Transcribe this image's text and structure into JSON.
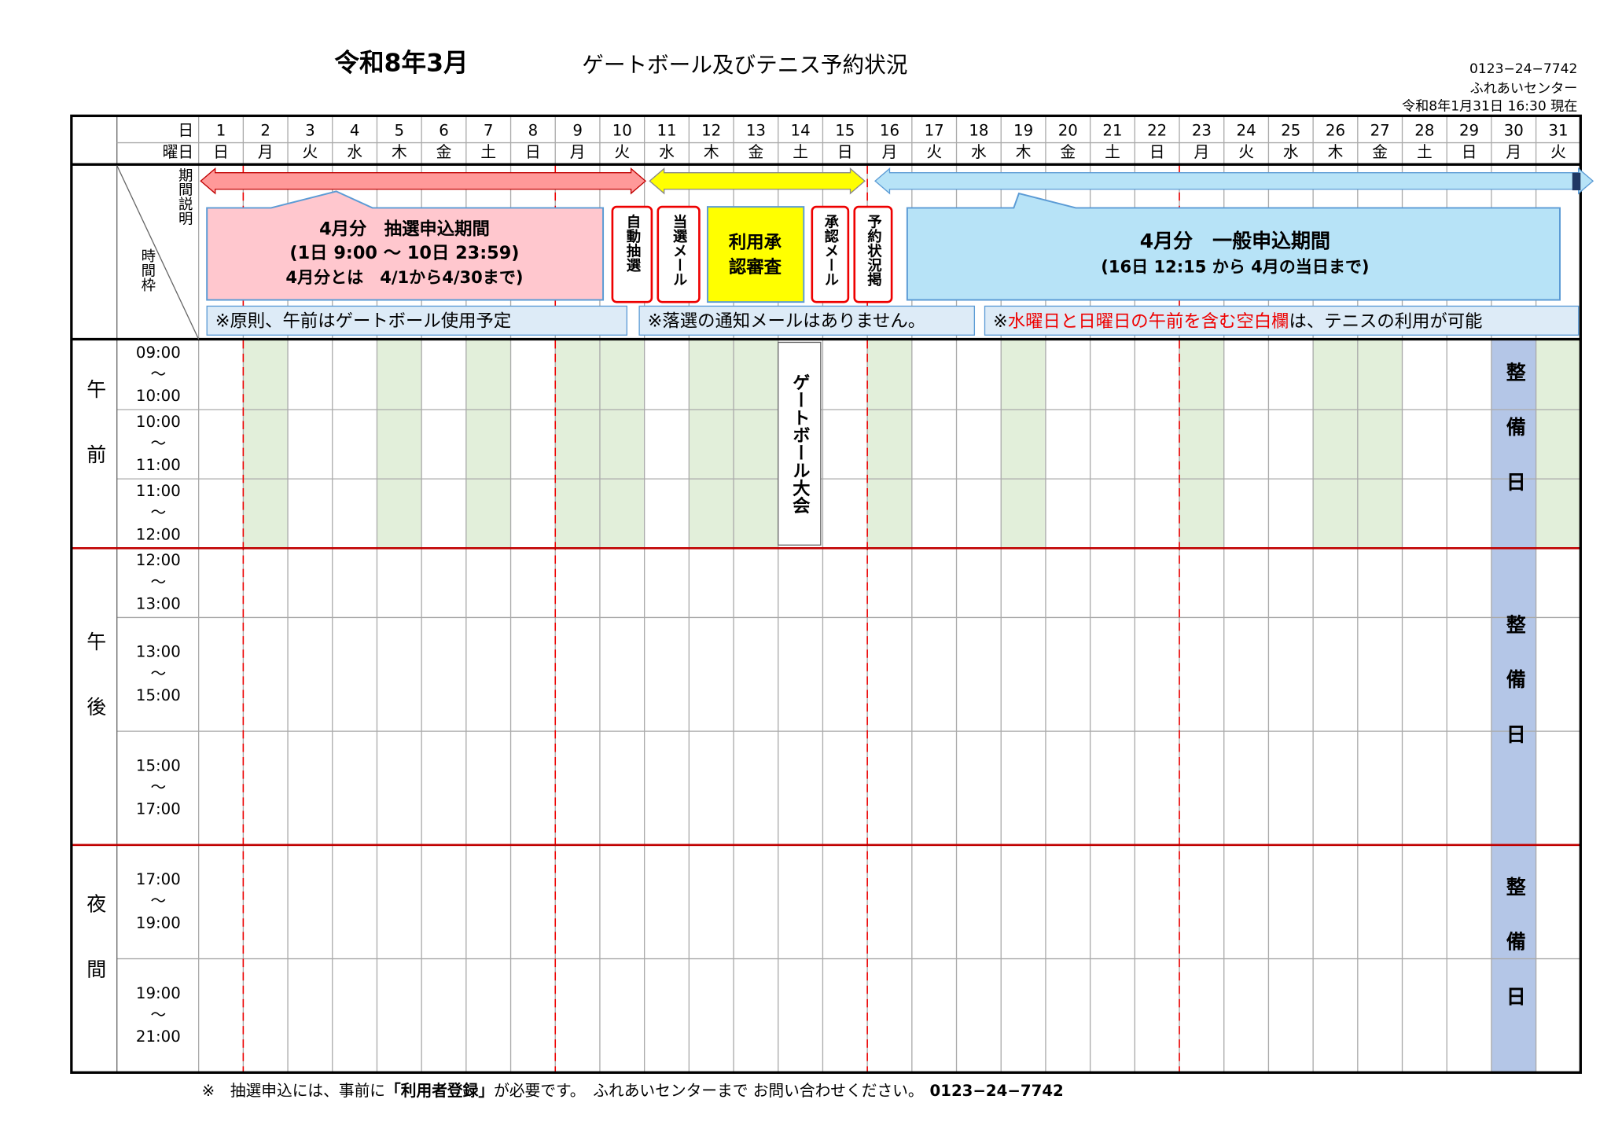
{
  "header": {
    "title": "令和8年3月",
    "subtitle": "ゲートボール及びテニス予約状況",
    "phone": "0123−24−7742",
    "center": "ふれあいセンター",
    "as_of": "令和8年1月31日 16:30 現在"
  },
  "table": {
    "day_label": "日",
    "weekday_label": "曜日",
    "period_label": "期間説明",
    "slot_label": "時間枠",
    "separator": "〜",
    "maintenance_label": "整備日",
    "event": "ゲートボール大会",
    "days": [
      {
        "day": 1,
        "weekday": "日",
        "color": "#ff0000",
        "am_shaded": false
      },
      {
        "day": 2,
        "weekday": "月",
        "color": "#000000",
        "am_shaded": true
      },
      {
        "day": 3,
        "weekday": "火",
        "color": "#000000",
        "am_shaded": false
      },
      {
        "day": 4,
        "weekday": "水",
        "color": "#000000",
        "am_shaded": false
      },
      {
        "day": 5,
        "weekday": "木",
        "color": "#000000",
        "am_shaded": true
      },
      {
        "day": 6,
        "weekday": "金",
        "color": "#000000",
        "am_shaded": false
      },
      {
        "day": 7,
        "weekday": "土",
        "color": "#00b0f0",
        "am_shaded": true
      },
      {
        "day": 8,
        "weekday": "日",
        "color": "#ff0000",
        "am_shaded": false
      },
      {
        "day": 9,
        "weekday": "月",
        "color": "#000000",
        "am_shaded": true
      },
      {
        "day": 10,
        "weekday": "火",
        "color": "#000000",
        "am_shaded": true
      },
      {
        "day": 11,
        "weekday": "水",
        "color": "#000000",
        "am_shaded": false
      },
      {
        "day": 12,
        "weekday": "木",
        "color": "#000000",
        "am_shaded": true
      },
      {
        "day": 13,
        "weekday": "金",
        "color": "#000000",
        "am_shaded": true
      },
      {
        "day": 14,
        "weekday": "土",
        "color": "#00b0f0",
        "am_shaded": false,
        "event": true
      },
      {
        "day": 15,
        "weekday": "日",
        "color": "#ff0000",
        "am_shaded": false
      },
      {
        "day": 16,
        "weekday": "月",
        "color": "#000000",
        "am_shaded": true
      },
      {
        "day": 17,
        "weekday": "火",
        "color": "#000000",
        "am_shaded": false
      },
      {
        "day": 18,
        "weekday": "水",
        "color": "#000000",
        "am_shaded": false
      },
      {
        "day": 19,
        "weekday": "木",
        "color": "#000000",
        "am_shaded": true
      },
      {
        "day": 20,
        "weekday": "金",
        "color": "#000000",
        "am_shaded": false
      },
      {
        "day": 21,
        "weekday": "土",
        "color": "#00b0f0",
        "am_shaded": false
      },
      {
        "day": 22,
        "weekday": "日",
        "color": "#ff0000",
        "am_shaded": false
      },
      {
        "day": 23,
        "weekday": "月",
        "color": "#000000",
        "am_shaded": true
      },
      {
        "day": 24,
        "weekday": "火",
        "color": "#000000",
        "am_shaded": false
      },
      {
        "day": 25,
        "weekday": "水",
        "color": "#000000",
        "am_shaded": false
      },
      {
        "day": 26,
        "weekday": "木",
        "color": "#000000",
        "am_shaded": true
      },
      {
        "day": 27,
        "weekday": "金",
        "color": "#000000",
        "am_shaded": true
      },
      {
        "day": 28,
        "weekday": "土",
        "color": "#00b0f0",
        "am_shaded": false
      },
      {
        "day": 29,
        "weekday": "日",
        "color": "#ff0000",
        "am_shaded": false
      },
      {
        "day": 30,
        "weekday": "月",
        "color": "#000000",
        "am_shaded": false,
        "maintenance": true
      },
      {
        "day": 31,
        "weekday": "火",
        "color": "#000000",
        "am_shaded": true
      }
    ],
    "sections": [
      {
        "label": "午前",
        "slots": [
          {
            "start": "09:00",
            "end": "10:00"
          },
          {
            "start": "10:00",
            "end": "11:00"
          },
          {
            "start": "11:00",
            "end": "12:00"
          }
        ]
      },
      {
        "label": "午後",
        "slots": [
          {
            "start": "12:00",
            "end": "13:00"
          },
          {
            "start": "13:00",
            "end": "15:00"
          },
          {
            "start": "15:00",
            "end": "17:00"
          }
        ]
      },
      {
        "label": "夜間",
        "slots": [
          {
            "start": "17:00",
            "end": "19:00"
          },
          {
            "start": "19:00",
            "end": "21:00"
          }
        ]
      }
    ]
  },
  "schedule": {
    "lottery": {
      "title": "4月分　抽選申込期間",
      "period": "(1日 9:00 〜 10日 23:59)",
      "note": "4月分とは　4/1から4/30まで)"
    },
    "steps": [
      "自動抽選",
      "当選メール",
      "承認メール",
      "予約状況掲"
    ],
    "review": [
      "利用承",
      "認審査"
    ],
    "general": {
      "title": "4月分　一般申込期間",
      "period": "(16日 12:15 から 4月の当日まで)"
    }
  },
  "notes": [
    "※原則、午前はゲートボール使用予定",
    "※落選の通知メールはありません。",
    {
      "mark": "※",
      "red": "水曜日と日曜日の午前を含む空白欄",
      "rest": "は、テニスの利用が可能"
    }
  ],
  "footer": {
    "lead": "※　抽選申込には、事前に",
    "bold": "「利用者登録」",
    "rest": "が必要です。　ふれあいセンターまで  お問い合わせください。",
    "phone": "0123−24−7742"
  }
}
